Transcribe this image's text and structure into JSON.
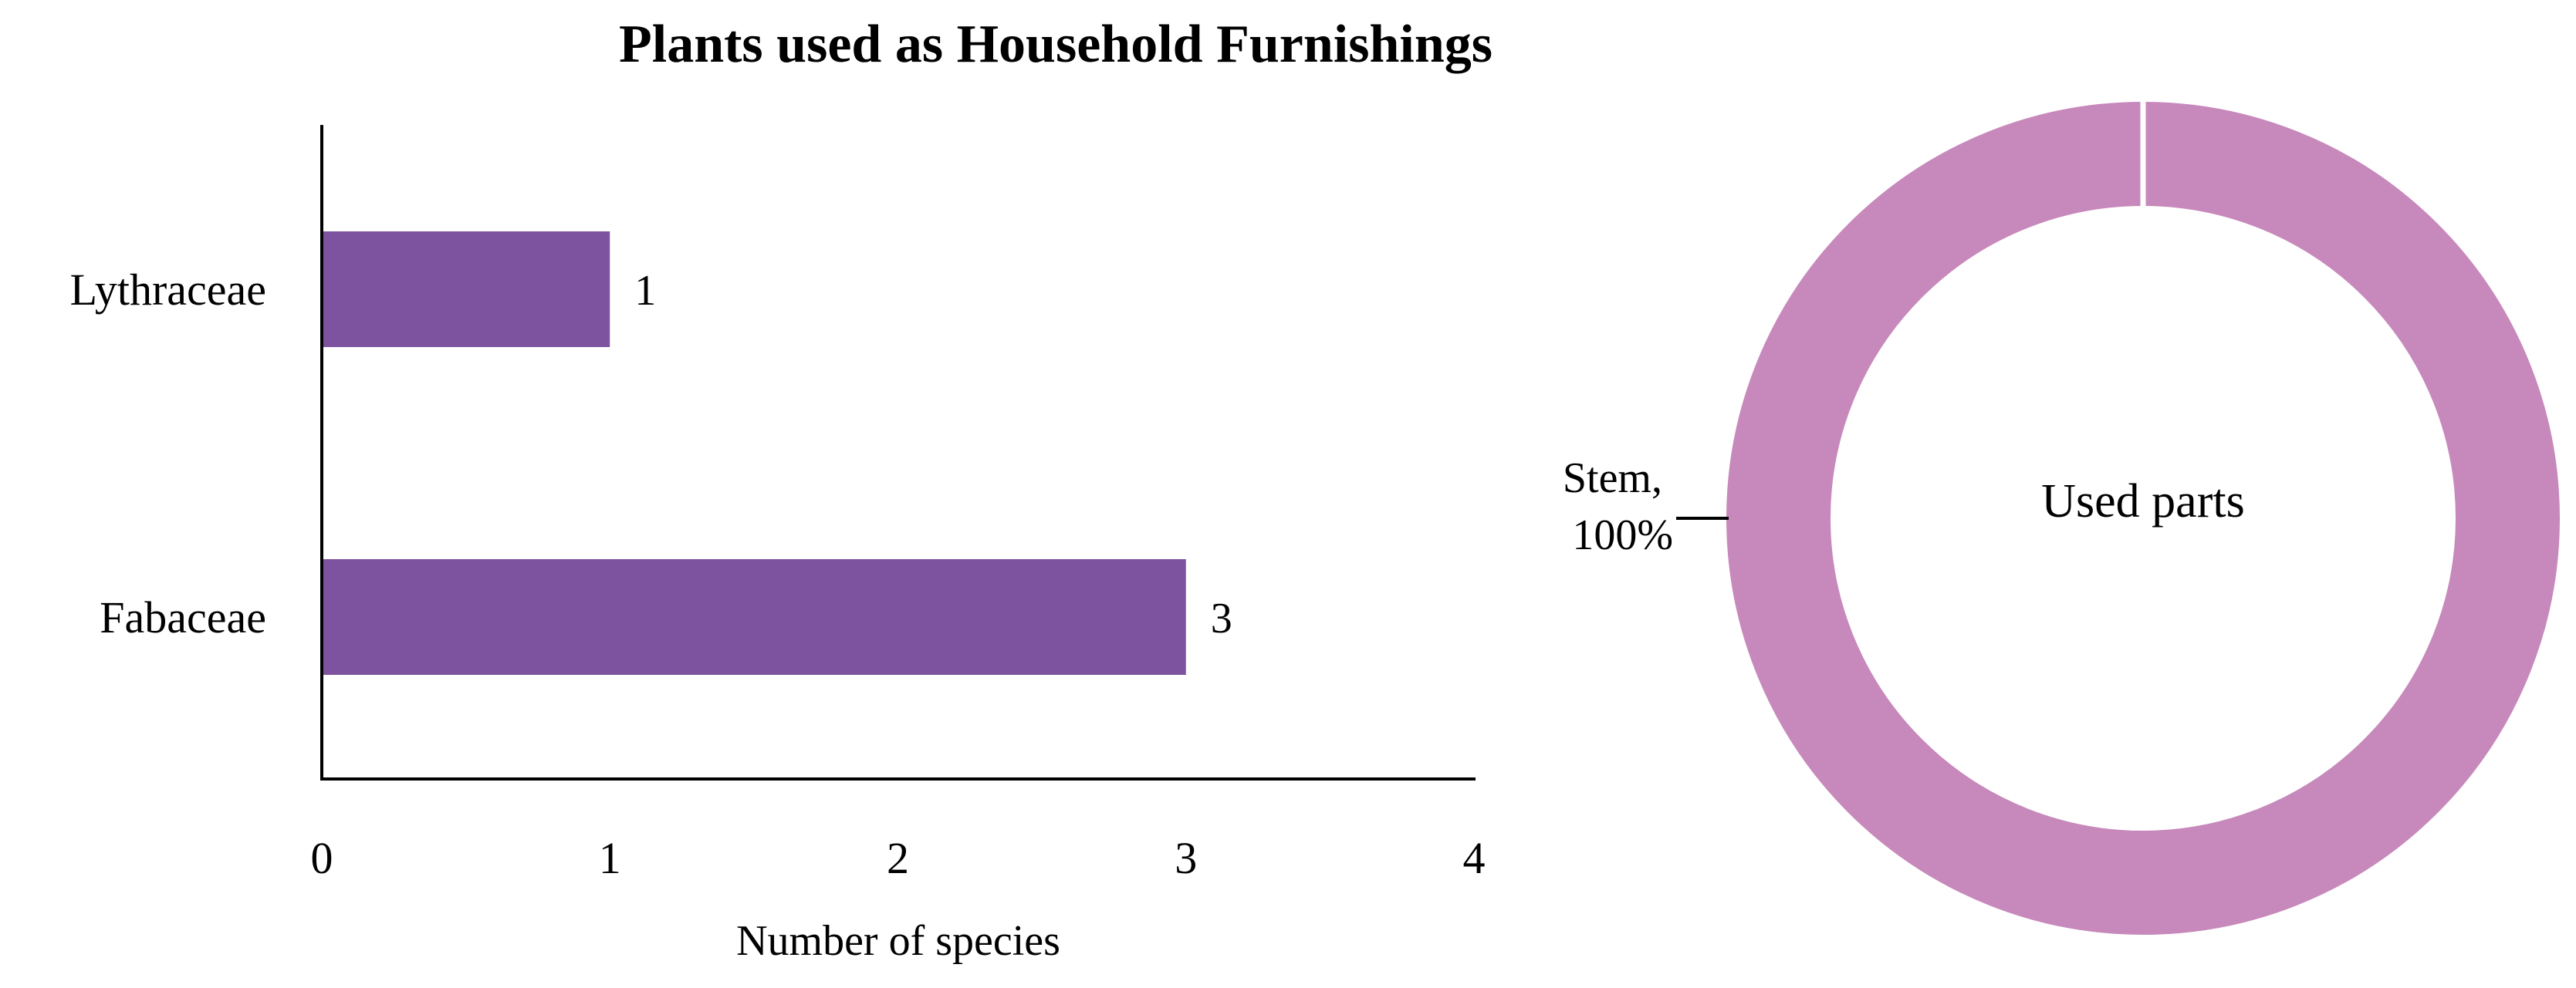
{
  "title": "Plants used as Household Furnishings",
  "chart_data": [
    {
      "type": "bar",
      "orientation": "horizontal",
      "categories": [
        "Lythraceae",
        "Fabaceae"
      ],
      "values": [
        1,
        3
      ],
      "data_labels": [
        "1",
        "3"
      ],
      "xlabel": "Number of species",
      "ylabel": "",
      "xlim": [
        0,
        4
      ],
      "xticks": [
        "0",
        "1",
        "2",
        "3",
        "4"
      ],
      "grid": false,
      "bar_color": "#7d529e"
    },
    {
      "type": "pie",
      "variant": "donut",
      "center_label": "Used parts",
      "slices": [
        {
          "label": "Stem",
          "value": 100,
          "label_line1": "Stem,",
          "label_line2": "100%"
        }
      ],
      "slice_color": "#c789bb",
      "label_position": "left"
    }
  ]
}
